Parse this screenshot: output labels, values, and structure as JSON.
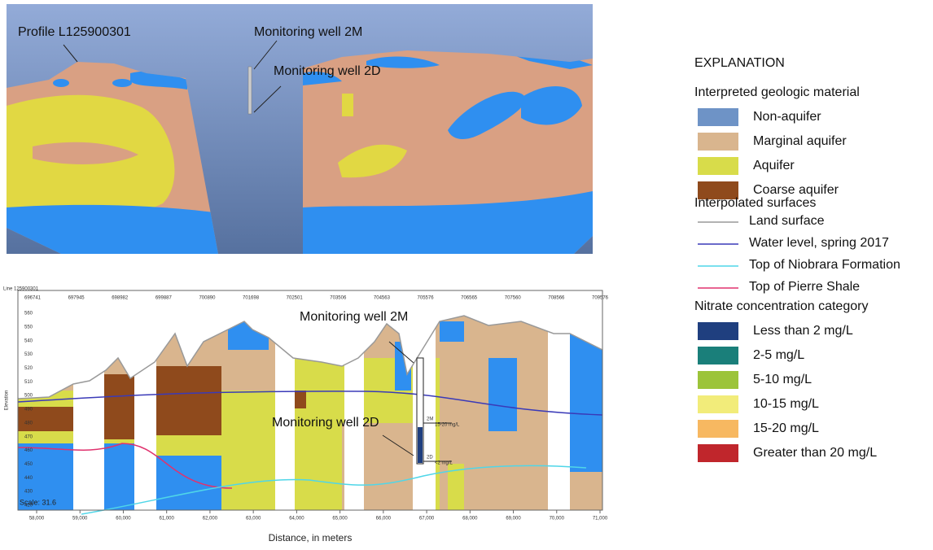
{
  "top_panel": {
    "labels": [
      "Profile L125900301",
      "Monitoring well 2M",
      "Monitoring well 2D"
    ]
  },
  "section": {
    "header": "Line 125900301",
    "top_ticks": [
      "696741",
      "697945",
      "698982",
      "699887",
      "700890",
      "701698",
      "702501",
      "703506",
      "704563",
      "705576",
      "706565",
      "707560",
      "708566",
      "709576"
    ],
    "y_ticks": [
      "560",
      "550",
      "540",
      "530",
      "520",
      "510",
      "500",
      "490",
      "480",
      "470",
      "460",
      "450",
      "440",
      "430",
      "420"
    ],
    "y_label": "Elevation",
    "x_ticks": [
      "58,000",
      "59,000",
      "60,000",
      "61,000",
      "62,000",
      "63,000",
      "64,000",
      "65,000",
      "66,000",
      "67,000",
      "68,000",
      "69,000",
      "70,000",
      "71,000"
    ],
    "x_label": "Distance, in meters",
    "scale": "Scale: 31.6",
    "wells": [
      "Monitoring well 2M",
      "Monitoring well 2D"
    ],
    "well_tags": [
      "2M",
      "15-20 mg/L",
      "2D",
      "<2 mg/L"
    ]
  },
  "legend": {
    "title": "EXPLANATION",
    "groups": [
      {
        "heading": "Interpreted geologic material",
        "kind": "swatch",
        "items": [
          {
            "label": "Non-aquifer",
            "color": "#6e93c6"
          },
          {
            "label": "Marginal aquifer",
            "color": "#d9b58e"
          },
          {
            "label": "Aquifer",
            "color": "#d8dc4a"
          },
          {
            "label": "Coarse aquifer",
            "color": "#8f4a1c"
          }
        ]
      },
      {
        "heading": "Interpolated surfaces",
        "kind": "line",
        "items": [
          {
            "label": "Land surface",
            "color": "#999999"
          },
          {
            "label": "Water level, spring 2017",
            "color": "#3a3ab8"
          },
          {
            "label": "Top of Niobrara Formation",
            "color": "#4fd6e8"
          },
          {
            "label": "Top of Pierre Shale",
            "color": "#e0326e"
          }
        ]
      },
      {
        "heading": "Nitrate concentration category",
        "kind": "swatch",
        "items": [
          {
            "label": "Less than 2 mg/L",
            "color": "#1f3f7f"
          },
          {
            "label": "2-5 mg/L",
            "color": "#1a7f7a"
          },
          {
            "label": "5-10 mg/L",
            "color": "#9cc43a"
          },
          {
            "label": "10-15 mg/L",
            "color": "#f2ec7a"
          },
          {
            "label": "15-20 mg/L",
            "color": "#f7b861"
          },
          {
            "label": "Greater than 20 mg/L",
            "color": "#c0262c"
          }
        ]
      }
    ]
  }
}
